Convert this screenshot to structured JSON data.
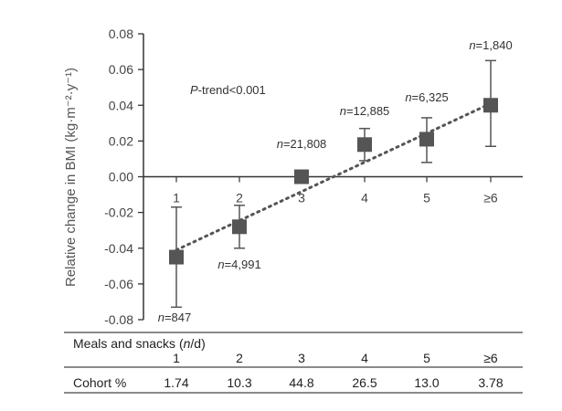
{
  "chart_data": {
    "type": "scatter",
    "categories": [
      "1",
      "2",
      "3",
      "4",
      "5",
      "≥6"
    ],
    "values": [
      -0.045,
      -0.028,
      0.0,
      0.018,
      0.021,
      0.04
    ],
    "error_low": [
      -0.073,
      -0.04,
      0.0,
      0.009,
      0.008,
      0.017
    ],
    "error_high": [
      -0.017,
      -0.016,
      0.0,
      0.027,
      0.033,
      0.065
    ],
    "n_labels": [
      "n=847",
      "n=4,991",
      "n=21,808",
      "n=12,885",
      "n=6,325",
      "n=1,840"
    ],
    "ylabel": "Relative change in BMI (kg·m⁻²·y⁻¹)",
    "ylim": [
      -0.08,
      0.08
    ],
    "yticks": [
      "0.08",
      "0.06",
      "0.04",
      "0.02",
      "0.00",
      "-0.02",
      "-0.04",
      "-0.06",
      "-0.08"
    ],
    "annotation": "P-trend<0.001",
    "trend_line": "dotted",
    "marker_color": "#555555",
    "trend_color": "#555555"
  },
  "table": {
    "header_label": "Meals and snacks (n/d)",
    "row_label": "Cohort %",
    "columns": [
      "1",
      "2",
      "3",
      "4",
      "5",
      "≥6"
    ],
    "values": [
      "1.74",
      "10.3",
      "44.8",
      "26.5",
      "13.0",
      "3.78"
    ]
  }
}
